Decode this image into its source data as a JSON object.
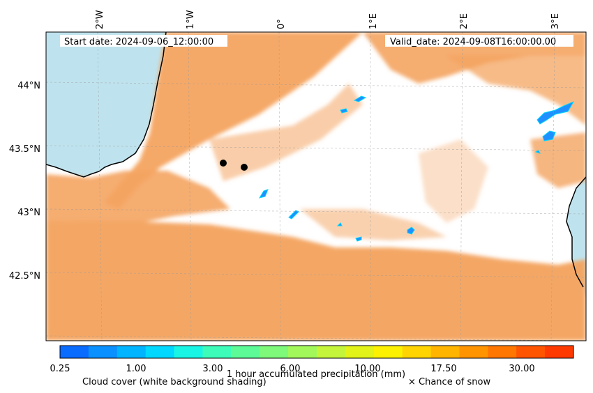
{
  "header": {
    "start_date": "Start date: 2024-09-06_12:00:00",
    "valid_date": "Valid_date: 2024-09-08T16:00:00.00"
  },
  "axes": {
    "lon_labels": [
      "2°W",
      "1°W",
      "0°",
      "1°E",
      "2°E",
      "3°E"
    ],
    "lat_labels": [
      "44°N",
      "43.5°N",
      "43°N",
      "42.5°N"
    ]
  },
  "colorbar": {
    "title": "1 hour accumulated precipitation (mm)",
    "tick_labels": [
      "0.25",
      "1.00",
      "3.00",
      "6.00",
      "10.00",
      "17.50",
      "30.00"
    ],
    "colors": [
      "#0a6cff",
      "#0a90ff",
      "#00b4ff",
      "#00d8ff",
      "#19f5e4",
      "#3dfcb9",
      "#5cfb98",
      "#7ef97a",
      "#a2f85a",
      "#c4f53b",
      "#e2f319",
      "#fbf100",
      "#ffd400",
      "#ffb400",
      "#ff9400",
      "#ff7600",
      "#ff5400",
      "#ff3a00"
    ]
  },
  "legend": {
    "cloud_cover": "Cloud cover (white background shading)",
    "snow": "× Chance of snow"
  },
  "styles": {
    "cloud": "#f4a460",
    "sea": "#bfe3ee",
    "coast": "#000000",
    "precip_blue": "#1e90ff"
  }
}
